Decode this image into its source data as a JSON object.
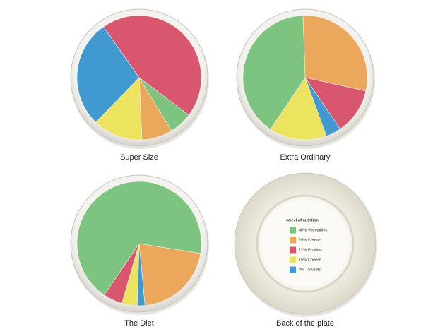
{
  "chart_data": [
    {
      "type": "pie",
      "title": "Super Size",
      "startangle": 325,
      "values": [
        45,
        6,
        8,
        13,
        28
      ],
      "colors": [
        "#d9566f",
        "#7cc47f",
        "#eba85c",
        "#ece35f",
        "#4199d2"
      ]
    },
    {
      "type": "pie",
      "title": "Extra Ordinary",
      "startangle": 358,
      "values": [
        29,
        12,
        4,
        15,
        40
      ],
      "colors": [
        "#eba85c",
        "#d9566f",
        "#4199d2",
        "#ece35f",
        "#7cc47f"
      ]
    },
    {
      "type": "pie",
      "title": "The Diet",
      "startangle": 99,
      "values": [
        21,
        2,
        4,
        5,
        68
      ],
      "colors": [
        "#eba85c",
        "#4199d2",
        "#ece35f",
        "#d9566f",
        "#7cc47f"
      ]
    },
    {
      "type": "legend",
      "title": "Back of the plate",
      "heading": "wheel of nutrition",
      "categories": [
        "Vegetables",
        "Cereals",
        "Proteins",
        "Cheese",
        "Sweets"
      ],
      "values": [
        40,
        29,
        12,
        15,
        4
      ],
      "value_labels": [
        "40%",
        "29%",
        "12%",
        "15%",
        "4%"
      ],
      "colors": [
        "#7cc47f",
        "#eba85c",
        "#d9566f",
        "#ece35f",
        "#4199d2"
      ]
    }
  ]
}
